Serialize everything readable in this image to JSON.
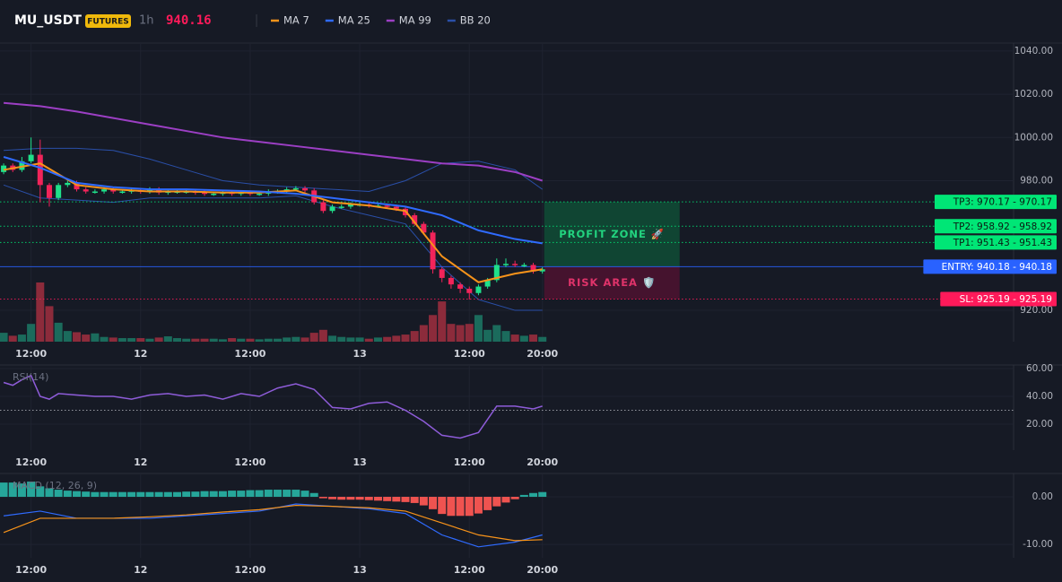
{
  "header": {
    "symbol": "MU_USDT",
    "badge": "FUTURES",
    "interval": "1h",
    "price": "940.16"
  },
  "chart_data": [
    {
      "type": "candlestick",
      "x": [
        0,
        1,
        2,
        3,
        4,
        5,
        6,
        7,
        8,
        9,
        10,
        11,
        12,
        13,
        14,
        15,
        16,
        17,
        18,
        19,
        20,
        21,
        22,
        23,
        24,
        25,
        26,
        27,
        28,
        29,
        30,
        31,
        32,
        33,
        34,
        35,
        36,
        37,
        38,
        39,
        40,
        41,
        42,
        43,
        44,
        45,
        46,
        47,
        48,
        49,
        50,
        51,
        52,
        53,
        54,
        55,
        56,
        57,
        58,
        59
      ],
      "open": [
        984,
        987,
        985,
        989,
        992,
        978,
        972,
        978,
        979,
        976,
        975,
        975,
        976,
        975,
        975,
        975.5,
        975,
        976,
        974.5,
        975,
        975,
        975,
        974.5,
        974,
        974,
        974.5,
        974,
        974.5,
        974,
        974,
        975,
        975,
        976,
        976.5,
        975.5,
        970,
        966,
        968,
        968,
        969,
        969,
        968.5,
        968.5,
        968,
        967,
        964,
        960,
        956,
        939,
        935,
        932,
        930,
        928,
        931,
        934,
        941,
        941.5,
        941,
        941,
        938
      ],
      "high": [
        988,
        988,
        991,
        1000,
        999,
        979,
        979,
        980,
        980,
        977,
        976,
        977,
        977,
        976,
        976.5,
        976.5,
        977,
        977,
        976,
        976,
        976,
        976,
        975.5,
        975,
        975.5,
        975.5,
        975.5,
        975.5,
        975,
        976,
        976,
        977,
        977.5,
        977.5,
        976.5,
        971,
        969,
        969,
        970,
        970,
        970,
        969.5,
        969.5,
        969,
        968,
        965,
        961,
        957,
        940,
        936,
        933,
        931,
        932,
        935,
        944,
        944,
        943,
        942,
        942,
        940
      ],
      "low": [
        983,
        984,
        984,
        988,
        970,
        968,
        971,
        977,
        975,
        974,
        974,
        974,
        974,
        974,
        974,
        974,
        974,
        973.5,
        973.5,
        974,
        974,
        973.5,
        973,
        973,
        973,
        973,
        973,
        973,
        973,
        973,
        974,
        974,
        975,
        974.5,
        969,
        965,
        965,
        967,
        967,
        968,
        967.5,
        967.5,
        967,
        966,
        963,
        959,
        955,
        937,
        933,
        930,
        928,
        925,
        927,
        930,
        933,
        940,
        940,
        940,
        937,
        937
      ],
      "close": [
        987,
        985,
        989,
        992,
        978,
        972,
        978,
        979,
        976,
        975,
        975,
        976,
        975,
        975,
        975.5,
        975,
        976,
        974.5,
        975,
        975,
        975,
        974.5,
        974,
        974,
        974.5,
        974,
        974.5,
        974,
        974,
        975,
        975,
        976,
        976.5,
        975.5,
        970,
        966,
        968,
        968,
        969,
        969,
        968.5,
        968.5,
        968,
        967,
        964,
        960,
        956,
        939,
        935,
        932,
        930,
        928,
        931,
        934,
        941,
        941.5,
        941,
        941,
        938,
        939
      ],
      "up_color": "#1fe08a",
      "down_color": "#f2245a",
      "volume": {
        "values": [
          15,
          10,
          12,
          30,
          100,
          60,
          32,
          18,
          16,
          12,
          14,
          8,
          7,
          6,
          6,
          6,
          5,
          7,
          9,
          6,
          5,
          5,
          5,
          5,
          4,
          6,
          5,
          5,
          4,
          5,
          5,
          7,
          8,
          7,
          15,
          20,
          10,
          8,
          7,
          7,
          5,
          7,
          8,
          10,
          12,
          18,
          28,
          45,
          68,
          30,
          28,
          30,
          45,
          20,
          28,
          18,
          12,
          10,
          12,
          8
        ],
        "ylim": [
          0,
          100
        ],
        "up_color": "#1b6b5c",
        "down_color": "#8c2b3b"
      },
      "series": [
        {
          "name": "MA 7",
          "color": "#f7931a",
          "x": [
            0,
            4,
            8,
            12,
            16,
            20,
            24,
            28,
            32,
            36,
            40,
            44,
            48,
            52,
            56,
            59
          ],
          "values": [
            985,
            988,
            978,
            976,
            975,
            975,
            974.5,
            974.5,
            975.5,
            970,
            968.5,
            966,
            945,
            933,
            937,
            939
          ]
        },
        {
          "name": "MA 25",
          "color": "#2f6bff",
          "x": [
            0,
            4,
            8,
            12,
            16,
            20,
            24,
            28,
            32,
            36,
            40,
            44,
            48,
            52,
            56,
            59
          ],
          "values": [
            991,
            986,
            979,
            977,
            976,
            976,
            975.5,
            975,
            974,
            972,
            970,
            968,
            964,
            957,
            953,
            951
          ]
        },
        {
          "name": "MA 99",
          "color": "#9c3fc4",
          "x": [
            0,
            4,
            8,
            12,
            16,
            20,
            24,
            28,
            32,
            36,
            40,
            44,
            48,
            52,
            56,
            59
          ],
          "values": [
            1016,
            1014.5,
            1012,
            1009,
            1006,
            1003,
            1000,
            998,
            996,
            994,
            992,
            990,
            988,
            987,
            984,
            980
          ]
        },
        {
          "name": "BB 20",
          "color": "#2a4fa8",
          "x": [
            0,
            4,
            8,
            12,
            16,
            20,
            24,
            28,
            32,
            36,
            40,
            44,
            48,
            52,
            56,
            59
          ],
          "upper": [
            994,
            995,
            995,
            994,
            990,
            985,
            980,
            978,
            977,
            976,
            975,
            980,
            988,
            989,
            985,
            976
          ],
          "lower": [
            978,
            972,
            971,
            970,
            972,
            972,
            972,
            972,
            973,
            968,
            964,
            960,
            940,
            925,
            920,
            920
          ]
        }
      ],
      "levels": [
        {
          "label": "TP3: 970.17 - 970.17",
          "value": 970.17,
          "color": "#00e676"
        },
        {
          "label": "TP2: 958.92 - 958.92",
          "value": 958.92,
          "color": "#00e676"
        },
        {
          "label": "TP1: 951.43 - 951.43",
          "value": 951.43,
          "color": "#00e676"
        },
        {
          "label": "ENTRY: 940.18 - 940.18",
          "value": 940.18,
          "color": "#2962ff"
        },
        {
          "label": "SL: 925.19 - 925.19",
          "value": 925.19,
          "color": "#ff1a5a"
        }
      ],
      "zones": [
        {
          "label": "PROFIT ZONE 🚀",
          "color": "#0f4a35"
        },
        {
          "label": "RISK AREA 🛡️",
          "color": "#4a1330"
        }
      ],
      "xlim": [
        -0.4,
        110.6
      ],
      "xticks": [
        {
          "value": 3,
          "label": "12:00"
        },
        {
          "value": 15,
          "label": "12"
        },
        {
          "value": 27,
          "label": "12:00"
        },
        {
          "value": 39,
          "label": "13"
        },
        {
          "value": 51,
          "label": "12:00"
        },
        {
          "value": 59,
          "label": "20:00"
        }
      ],
      "ylim": [
        905.5,
        1043.7
      ],
      "yticks": [
        {
          "value": 1040,
          "label": "1040.00"
        },
        {
          "value": 1020,
          "label": "1020.00"
        },
        {
          "value": 1000,
          "label": "1000.00"
        },
        {
          "value": 980,
          "label": "980.00"
        },
        {
          "value": 920,
          "label": "920.00"
        }
      ]
    },
    {
      "type": "line",
      "title": "RSI(14)",
      "series": [
        {
          "name": "RSI",
          "color": "#8e5cd9",
          "x": [
            0,
            1,
            2,
            3,
            4,
            5,
            6,
            8,
            10,
            12,
            14,
            16,
            18,
            20,
            22,
            24,
            26,
            28,
            30,
            32,
            34,
            36,
            38,
            40,
            42,
            44,
            46,
            48,
            50,
            52,
            54,
            56,
            58,
            59
          ],
          "values": [
            50,
            48,
            52,
            55,
            40,
            38,
            42,
            41,
            40,
            40,
            38,
            41,
            42,
            40,
            41,
            38,
            42,
            40,
            46,
            49,
            45,
            32,
            31,
            35,
            36,
            30,
            22,
            12,
            10,
            14,
            33,
            33,
            31,
            33
          ]
        }
      ],
      "ref_line": 30,
      "xlim": [
        -0.4,
        110.6
      ],
      "xticks": [
        {
          "value": 3,
          "label": "12:00"
        },
        {
          "value": 15,
          "label": "12"
        },
        {
          "value": 27,
          "label": "12:00"
        },
        {
          "value": 39,
          "label": "13"
        },
        {
          "value": 51,
          "label": "12:00"
        },
        {
          "value": 59,
          "label": "20:00"
        }
      ],
      "ylim": [
        1.3,
        62.6
      ],
      "yticks": [
        {
          "value": 60,
          "label": "60.00"
        },
        {
          "value": 40,
          "label": "40.00"
        },
        {
          "value": 20,
          "label": "20.00"
        }
      ]
    },
    {
      "type": "macd",
      "title": "MACD (12, 26, 9)",
      "x": [
        0,
        1,
        2,
        3,
        4,
        5,
        6,
        7,
        8,
        9,
        10,
        11,
        12,
        13,
        14,
        15,
        16,
        17,
        18,
        19,
        20,
        21,
        22,
        23,
        24,
        25,
        26,
        27,
        28,
        29,
        30,
        31,
        32,
        33,
        34,
        35,
        36,
        37,
        38,
        39,
        40,
        41,
        42,
        43,
        44,
        45,
        46,
        47,
        48,
        49,
        50,
        51,
        52,
        53,
        54,
        55,
        56,
        57,
        58,
        59
      ],
      "histogram": [
        3,
        3,
        2.8,
        3.2,
        2.2,
        1.8,
        1.5,
        1.3,
        1.2,
        1.1,
        1,
        1,
        1,
        1,
        1,
        1,
        1,
        1,
        1,
        1,
        1.1,
        1.1,
        1.2,
        1.2,
        1.2,
        1.3,
        1.3,
        1.4,
        1.4,
        1.5,
        1.5,
        1.5,
        1.5,
        1.3,
        0.8,
        -0.3,
        -0.5,
        -0.6,
        -0.6,
        -0.6,
        -0.7,
        -0.8,
        -0.9,
        -1,
        -1.1,
        -1.3,
        -1.8,
        -2.6,
        -3.6,
        -4,
        -4,
        -4,
        -3.5,
        -2.8,
        -2,
        -1.2,
        -0.5,
        0.4,
        0.8,
        1
      ],
      "up_color": "#26a69a",
      "down_color": "#ef5350",
      "series": [
        {
          "name": "MACD",
          "color": "#2f6bff",
          "x": [
            0,
            4,
            8,
            12,
            16,
            20,
            24,
            28,
            32,
            36,
            40,
            44,
            48,
            52,
            56,
            59
          ],
          "values": [
            -4,
            -3,
            -4.5,
            -4.5,
            -4.5,
            -4,
            -3.5,
            -3,
            -1.5,
            -2,
            -2.5,
            -3.5,
            -8,
            -10.5,
            -9.5,
            -8
          ]
        },
        {
          "name": "Signal",
          "color": "#f7931a",
          "x": [
            0,
            4,
            8,
            12,
            16,
            20,
            24,
            28,
            32,
            36,
            40,
            44,
            48,
            52,
            56,
            59
          ],
          "values": [
            -7.5,
            -4.5,
            -4.5,
            -4.5,
            -4.2,
            -3.8,
            -3.2,
            -2.7,
            -1.8,
            -2,
            -2.3,
            -3,
            -5.5,
            -8,
            -9.2,
            -9
          ]
        }
      ],
      "xlim": [
        -0.4,
        110.6
      ],
      "xticks": [
        {
          "value": 3,
          "label": "12:00"
        },
        {
          "value": 15,
          "label": "12"
        },
        {
          "value": 27,
          "label": "12:00"
        },
        {
          "value": 39,
          "label": "13"
        },
        {
          "value": 51,
          "label": "12:00"
        },
        {
          "value": 59,
          "label": "20:00"
        }
      ],
      "ylim": [
        -12.8,
        4.9
      ],
      "yticks": [
        {
          "value": 0,
          "label": "0.00"
        },
        {
          "value": -10,
          "label": "-10.00"
        }
      ]
    }
  ]
}
